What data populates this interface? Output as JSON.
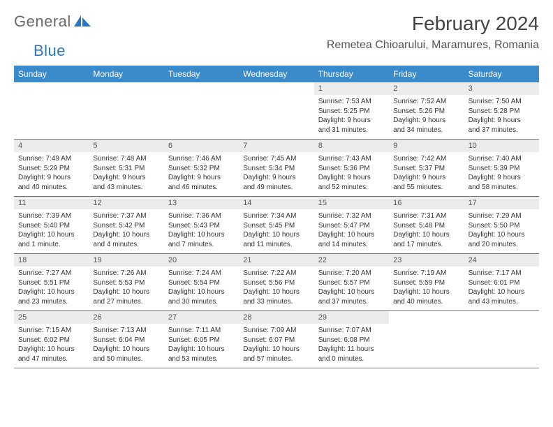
{
  "brand": {
    "part1": "General",
    "part2": "Blue"
  },
  "title": "February 2024",
  "location": "Remetea Chioarului, Maramures, Romania",
  "colors": {
    "header_bar": "#3b8bca",
    "daynum_bg": "#ececec",
    "week_border": "#4a7fa8",
    "logo_gray": "#6a6a6a",
    "logo_blue": "#2b78c2"
  },
  "weekdays": [
    "Sunday",
    "Monday",
    "Tuesday",
    "Wednesday",
    "Thursday",
    "Friday",
    "Saturday"
  ],
  "weeks": [
    [
      null,
      null,
      null,
      null,
      {
        "n": "1",
        "sr": "Sunrise: 7:53 AM",
        "ss": "Sunset: 5:25 PM",
        "dl1": "Daylight: 9 hours",
        "dl2": "and 31 minutes."
      },
      {
        "n": "2",
        "sr": "Sunrise: 7:52 AM",
        "ss": "Sunset: 5:26 PM",
        "dl1": "Daylight: 9 hours",
        "dl2": "and 34 minutes."
      },
      {
        "n": "3",
        "sr": "Sunrise: 7:50 AM",
        "ss": "Sunset: 5:28 PM",
        "dl1": "Daylight: 9 hours",
        "dl2": "and 37 minutes."
      }
    ],
    [
      {
        "n": "4",
        "sr": "Sunrise: 7:49 AM",
        "ss": "Sunset: 5:29 PM",
        "dl1": "Daylight: 9 hours",
        "dl2": "and 40 minutes."
      },
      {
        "n": "5",
        "sr": "Sunrise: 7:48 AM",
        "ss": "Sunset: 5:31 PM",
        "dl1": "Daylight: 9 hours",
        "dl2": "and 43 minutes."
      },
      {
        "n": "6",
        "sr": "Sunrise: 7:46 AM",
        "ss": "Sunset: 5:32 PM",
        "dl1": "Daylight: 9 hours",
        "dl2": "and 46 minutes."
      },
      {
        "n": "7",
        "sr": "Sunrise: 7:45 AM",
        "ss": "Sunset: 5:34 PM",
        "dl1": "Daylight: 9 hours",
        "dl2": "and 49 minutes."
      },
      {
        "n": "8",
        "sr": "Sunrise: 7:43 AM",
        "ss": "Sunset: 5:36 PM",
        "dl1": "Daylight: 9 hours",
        "dl2": "and 52 minutes."
      },
      {
        "n": "9",
        "sr": "Sunrise: 7:42 AM",
        "ss": "Sunset: 5:37 PM",
        "dl1": "Daylight: 9 hours",
        "dl2": "and 55 minutes."
      },
      {
        "n": "10",
        "sr": "Sunrise: 7:40 AM",
        "ss": "Sunset: 5:39 PM",
        "dl1": "Daylight: 9 hours",
        "dl2": "and 58 minutes."
      }
    ],
    [
      {
        "n": "11",
        "sr": "Sunrise: 7:39 AM",
        "ss": "Sunset: 5:40 PM",
        "dl1": "Daylight: 10 hours",
        "dl2": "and 1 minute."
      },
      {
        "n": "12",
        "sr": "Sunrise: 7:37 AM",
        "ss": "Sunset: 5:42 PM",
        "dl1": "Daylight: 10 hours",
        "dl2": "and 4 minutes."
      },
      {
        "n": "13",
        "sr": "Sunrise: 7:36 AM",
        "ss": "Sunset: 5:43 PM",
        "dl1": "Daylight: 10 hours",
        "dl2": "and 7 minutes."
      },
      {
        "n": "14",
        "sr": "Sunrise: 7:34 AM",
        "ss": "Sunset: 5:45 PM",
        "dl1": "Daylight: 10 hours",
        "dl2": "and 11 minutes."
      },
      {
        "n": "15",
        "sr": "Sunrise: 7:32 AM",
        "ss": "Sunset: 5:47 PM",
        "dl1": "Daylight: 10 hours",
        "dl2": "and 14 minutes."
      },
      {
        "n": "16",
        "sr": "Sunrise: 7:31 AM",
        "ss": "Sunset: 5:48 PM",
        "dl1": "Daylight: 10 hours",
        "dl2": "and 17 minutes."
      },
      {
        "n": "17",
        "sr": "Sunrise: 7:29 AM",
        "ss": "Sunset: 5:50 PM",
        "dl1": "Daylight: 10 hours",
        "dl2": "and 20 minutes."
      }
    ],
    [
      {
        "n": "18",
        "sr": "Sunrise: 7:27 AM",
        "ss": "Sunset: 5:51 PM",
        "dl1": "Daylight: 10 hours",
        "dl2": "and 23 minutes."
      },
      {
        "n": "19",
        "sr": "Sunrise: 7:26 AM",
        "ss": "Sunset: 5:53 PM",
        "dl1": "Daylight: 10 hours",
        "dl2": "and 27 minutes."
      },
      {
        "n": "20",
        "sr": "Sunrise: 7:24 AM",
        "ss": "Sunset: 5:54 PM",
        "dl1": "Daylight: 10 hours",
        "dl2": "and 30 minutes."
      },
      {
        "n": "21",
        "sr": "Sunrise: 7:22 AM",
        "ss": "Sunset: 5:56 PM",
        "dl1": "Daylight: 10 hours",
        "dl2": "and 33 minutes."
      },
      {
        "n": "22",
        "sr": "Sunrise: 7:20 AM",
        "ss": "Sunset: 5:57 PM",
        "dl1": "Daylight: 10 hours",
        "dl2": "and 37 minutes."
      },
      {
        "n": "23",
        "sr": "Sunrise: 7:19 AM",
        "ss": "Sunset: 5:59 PM",
        "dl1": "Daylight: 10 hours",
        "dl2": "and 40 minutes."
      },
      {
        "n": "24",
        "sr": "Sunrise: 7:17 AM",
        "ss": "Sunset: 6:01 PM",
        "dl1": "Daylight: 10 hours",
        "dl2": "and 43 minutes."
      }
    ],
    [
      {
        "n": "25",
        "sr": "Sunrise: 7:15 AM",
        "ss": "Sunset: 6:02 PM",
        "dl1": "Daylight: 10 hours",
        "dl2": "and 47 minutes."
      },
      {
        "n": "26",
        "sr": "Sunrise: 7:13 AM",
        "ss": "Sunset: 6:04 PM",
        "dl1": "Daylight: 10 hours",
        "dl2": "and 50 minutes."
      },
      {
        "n": "27",
        "sr": "Sunrise: 7:11 AM",
        "ss": "Sunset: 6:05 PM",
        "dl1": "Daylight: 10 hours",
        "dl2": "and 53 minutes."
      },
      {
        "n": "28",
        "sr": "Sunrise: 7:09 AM",
        "ss": "Sunset: 6:07 PM",
        "dl1": "Daylight: 10 hours",
        "dl2": "and 57 minutes."
      },
      {
        "n": "29",
        "sr": "Sunrise: 7:07 AM",
        "ss": "Sunset: 6:08 PM",
        "dl1": "Daylight: 11 hours",
        "dl2": "and 0 minutes."
      },
      null,
      null
    ]
  ]
}
